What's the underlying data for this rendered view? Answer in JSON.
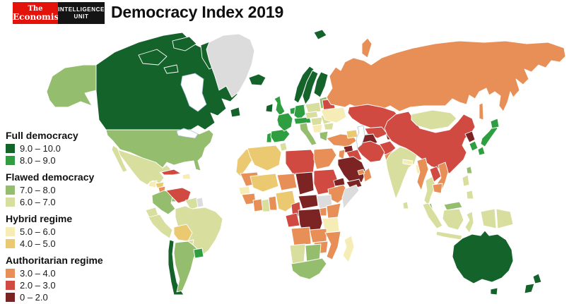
{
  "header": {
    "publisher": {
      "line1": "The",
      "line2": "Economist"
    },
    "unit": {
      "line1": "INTELLIGENCE",
      "line2": "UNIT"
    },
    "title": "Democracy Index 2019",
    "brand_red": "#e3120b",
    "brand_black": "#141414"
  },
  "legend": {
    "groups": [
      {
        "title": "Full democracy",
        "items": [
          {
            "range": "9.0 – 10.0",
            "band": "9-10"
          },
          {
            "range": "8.0 – 9.0",
            "band": "8-9"
          }
        ]
      },
      {
        "title": "Flawed democracy",
        "items": [
          {
            "range": "7.0 – 8.0",
            "band": "7-8"
          },
          {
            "range": "6.0 – 7.0",
            "band": "6-7"
          }
        ]
      },
      {
        "title": "Hybrid regime",
        "items": [
          {
            "range": "5.0 – 6.0",
            "band": "5-6"
          },
          {
            "range": "4.0 – 5.0",
            "band": "4-5"
          }
        ]
      },
      {
        "title": "Authoritarian regime",
        "items": [
          {
            "range": "3.0 – 4.0",
            "band": "3-4"
          },
          {
            "range": "2.0 – 3.0",
            "band": "2-3"
          },
          {
            "range": "0 – 2.0",
            "band": "0-2"
          }
        ]
      }
    ],
    "band_colors": {
      "9-10": "#14632b",
      "8-9": "#2f9e41",
      "7-8": "#94bd6e",
      "6-7": "#d8de9d",
      "5-6": "#f6ecb5",
      "4-5": "#ebc971",
      "3-4": "#e78f57",
      "2-3": "#d04a42",
      "0-2": "#7b2423"
    },
    "no_data_color": "#dcdcdc"
  },
  "map": {
    "ocean_color": "#ffffff",
    "border_color": "#ffffff",
    "water_outline": "#a9c6da",
    "regions": {
      "alaska": "7-8",
      "canada": "9-10",
      "arctic-islands-1": "9-10",
      "arctic-islands-2": "9-10",
      "baffin-island": "9-10",
      "arctic-islands-3": "9-10",
      "newfoundland": "9-10",
      "greenland": "nodata",
      "iceland": "9-10",
      "svalbard": "9-10",
      "usa": "7-8",
      "mexico": "6-7",
      "baja": "6-7",
      "guatemala": "5-6",
      "honduras": "4-5",
      "nicaragua": "3-4",
      "costa-rica": "8-9",
      "panama": "7-8",
      "cuba": "2-3",
      "hispaniola": "5-6",
      "colombia": "7-8",
      "venezuela": "2-3",
      "guianas": "6-7",
      "french-guiana": "nodata",
      "brazil": "6-7",
      "ecuador": "6-7",
      "peru": "6-7",
      "bolivia": "4-5",
      "paraguay": "6-7",
      "chile": "9-10",
      "argentina": "7-8",
      "uruguay": "8-9",
      "ireland": "9-10",
      "uk": "8-9",
      "norway": "9-10",
      "sweden": "9-10",
      "finland": "9-10",
      "denmark": "9-10",
      "baltics": "7-8",
      "portugal": "8-9",
      "spain": "8-9",
      "france": "8-9",
      "benelux": "8-9",
      "germany": "8-9",
      "alpine": "8-9",
      "italy": "7-8",
      "poland": "6-7",
      "czech-slovakia": "6-7",
      "hungary": "6-7",
      "balkans": "5-6",
      "romania": "6-7",
      "bulgaria": "6-7",
      "greece": "7-8",
      "belarus": "2-3",
      "ukraine": "5-6",
      "russia": "3-4",
      "sakhalin": "3-4",
      "novaya-zemlya": "3-4",
      "kazakhstan": "2-3",
      "uzbekistan": "2-3",
      "turkmenistan": "0-2",
      "kyrgyzstan": "3-4",
      "tajikistan": "0-2",
      "afghanistan": "2-3",
      "pakistan": "3-4",
      "turkey": "3-4",
      "caucasus": "4-5",
      "syria": "0-2",
      "iraq": "2-3",
      "jordan": "3-4",
      "saudi-arabia": "0-2",
      "yemen": "0-2",
      "oman": "3-4",
      "uae": "3-4",
      "iran": "2-3",
      "morocco": "4-5",
      "algeria": "4-5",
      "tunisia": "6-7",
      "libya": "2-3",
      "egypt": "3-4",
      "mauritania": "3-4",
      "mali": "4-5",
      "niger": "3-4",
      "chad": "0-2",
      "sudan": "2-3",
      "eritrea": "0-2",
      "ethiopia": "3-4",
      "somalia": "nodata",
      "senegal": "5-6",
      "guinea": "3-4",
      "ivory-coast": "3-4",
      "ghana": "6-7",
      "benin-togo": "3-4",
      "nigeria": "4-5",
      "cameroon": "2-3",
      "central-african-republic": "0-2",
      "south-sudan": "nodata",
      "uganda": "3-4",
      "kenya": "3-4",
      "gabon-congo": "2-3",
      "drc": "0-2",
      "tanzania": "5-6",
      "angola": "3-4",
      "zambia": "3-4",
      "mozambique": "3-4",
      "zimbabwe": "3-4",
      "namibia": "6-7",
      "botswana": "7-8",
      "south-africa": "7-8",
      "madagascar": "5-6",
      "india": "6-7",
      "nepal": "5-6",
      "bangladesh": "5-6",
      "sri-lanka": "6-7",
      "china": "2-3",
      "mongolia": "6-7",
      "north-korea": "0-2",
      "south-korea": "8-9",
      "japan-honshu": "8-9",
      "japan-hokkaido": "8-9",
      "japan-kyushu": "8-9",
      "taiwan": "7-8",
      "myanmar": "3-4",
      "thailand": "6-7",
      "laos": "2-3",
      "vietnam": "3-4",
      "cambodia": "3-4",
      "malaysia-peninsula": "7-8",
      "malaysia-borneo": "7-8",
      "philippines-luzon": "6-7",
      "philippines-mindanao": "6-7",
      "sumatra": "6-7",
      "java": "6-7",
      "borneo": "6-7",
      "sulawesi": "6-7",
      "new-guinea-west": "6-7",
      "papua-new-guinea": "6-7",
      "australia": "9-10",
      "tasmania": "9-10",
      "new-zealand-north": "9-10",
      "new-zealand-south": "9-10"
    }
  }
}
